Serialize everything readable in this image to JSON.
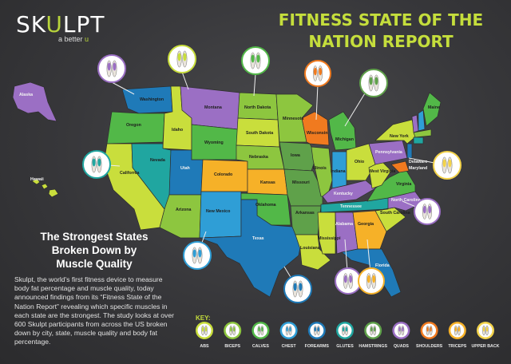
{
  "brand": {
    "name_start": "SK",
    "name_u": "U",
    "name_end": "LPT",
    "tagline_start": "a better ",
    "tagline_u": "u",
    "accent": "#b8d43b"
  },
  "title": {
    "line1": "FITNESS STATE OF THE",
    "line2": "NATION REPORT"
  },
  "subhead": {
    "line1": "The Strongest States",
    "line2": "Broken Down by",
    "line3": "Muscle Quality"
  },
  "body": "Skulpt, the world's first fitness device to measure body fat percentage and muscle quality, today announced findings from its “Fitness State of the Nation Report” revealing which specific muscles in each state are the strongest. The study looks at over 600 Skulpt participants from across the US broken down by city, state, muscle quality and body fat percentage.",
  "states": {
    "alaska": "Alaska",
    "hawaii": "Hawaii",
    "washington": "Washington",
    "oregon": "Oregon",
    "california": "California",
    "idaho": "Idaho",
    "nevada": "Nevada",
    "montana": "Montana",
    "wyoming": "Wyoming",
    "utah": "Utah",
    "arizona": "Arizona",
    "colorado": "Colorado",
    "new_mexico": "New Mexico",
    "north_dakota": "North Dakota",
    "south_dakota": "South Dakota",
    "nebraska": "Nebraska",
    "kansas": "Kansas",
    "oklahoma": "Oklahoma",
    "texas": "Texas",
    "minnesota": "Minnesota",
    "iowa": "Iowa",
    "missouri": "Missouri",
    "arkansas": "Arkansas",
    "louisiana": "Louisiana",
    "wisconsin": "Wisconsin",
    "illinois": "Illinois",
    "michigan": "Michigan",
    "indiana": "Indiana",
    "ohio": "Ohio",
    "kentucky": "Kentucky",
    "tennessee": "Tennessee",
    "mississippi": "Mississippi",
    "alabama": "Alabama",
    "georgia": "Georgia",
    "florida": "Florida",
    "south_carolina": "South Carolina",
    "north_carolina": "North Carolina",
    "virginia": "Virginia",
    "west_virginia": "West Virginia",
    "pennsylvania": "Pennsylvania",
    "new_york": "New York",
    "maine": "Maine",
    "delaware": "Delaware",
    "maryland": "Maryland"
  },
  "key": {
    "title": "KEY:",
    "items": [
      {
        "label": "ABS",
        "color": "#c9de3c"
      },
      {
        "label": "BICEPS",
        "color": "#8dc63f"
      },
      {
        "label": "CALVES",
        "color": "#52b848"
      },
      {
        "label": "CHEST",
        "color": "#2f9ed6"
      },
      {
        "label": "FOREARMS",
        "color": "#1f7ab8"
      },
      {
        "label": "GLUTES",
        "color": "#20a6a0"
      },
      {
        "label": "HAMSTRINGS",
        "color": "#5fa14a"
      },
      {
        "label": "QUADS",
        "color": "#9b6fc4"
      },
      {
        "label": "SHOULDERS",
        "color": "#f07a1f"
      },
      {
        "label": "TRICEPS",
        "color": "#f6b128"
      },
      {
        "label": "UPPER BACK",
        "color": "#f3d34a"
      }
    ]
  },
  "icons": {
    "muscle_figure": "muscle-figure-icon"
  }
}
